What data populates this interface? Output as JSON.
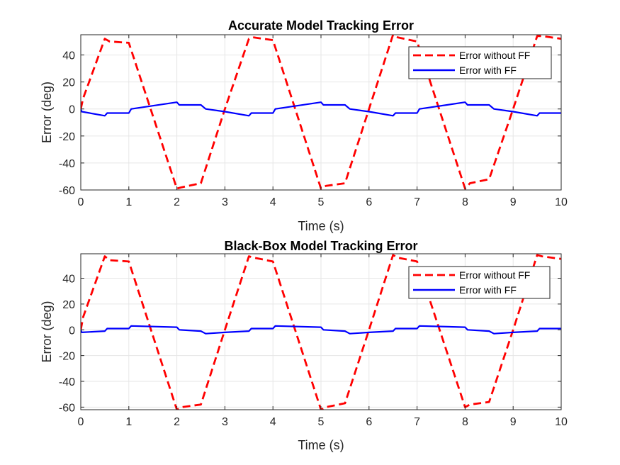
{
  "chart_data": [
    {
      "type": "line",
      "title": "Accurate Model Tracking Error",
      "xlabel": "Time (s)",
      "ylabel": "Error (deg)",
      "xlim": [
        0,
        10
      ],
      "ylim": [
        -60,
        55
      ],
      "xticks": [
        0,
        1,
        2,
        3,
        4,
        5,
        6,
        7,
        8,
        9,
        10
      ],
      "yticks": [
        -60,
        -40,
        -20,
        0,
        20,
        40
      ],
      "grid": true,
      "legend_position": "top-right",
      "series": [
        {
          "name": "Error without FF",
          "color": "#ff0000",
          "style": "dashed",
          "x": [
            0,
            0.05,
            0.5,
            0.6,
            1.0,
            2.0,
            2.1,
            2.5,
            3.0,
            3.5,
            3.6,
            4.0,
            5.0,
            5.1,
            5.5,
            6.0,
            6.5,
            6.6,
            7.0,
            8.0,
            8.1,
            8.5,
            9.0,
            9.5,
            9.6,
            10.0
          ],
          "y": [
            0,
            8,
            52,
            50,
            49,
            -59,
            -58,
            -55,
            0,
            52,
            53,
            51,
            -59,
            -57,
            -55,
            0,
            55,
            53,
            50,
            -59,
            -55,
            -52,
            0,
            54,
            54,
            52
          ]
        },
        {
          "name": "Error with FF",
          "color": "#0000ff",
          "style": "solid",
          "x": [
            0,
            0.02,
            0.5,
            0.55,
            1.0,
            1.05,
            2.0,
            2.05,
            2.5,
            2.6,
            3.0,
            3.5,
            3.55,
            4.0,
            4.05,
            5.0,
            5.05,
            5.5,
            5.6,
            6.0,
            6.5,
            6.55,
            7.0,
            7.05,
            8.0,
            8.05,
            8.5,
            8.6,
            9.0,
            9.5,
            9.55,
            10.0
          ],
          "y": [
            0,
            -2,
            -5,
            -3,
            -3,
            0,
            5,
            3,
            3,
            0,
            -2,
            -5,
            -3,
            -3,
            0,
            5,
            3,
            3,
            0,
            -2,
            -5,
            -3,
            -3,
            0,
            5,
            3,
            3,
            0,
            -2,
            -5,
            -3,
            -3
          ]
        }
      ]
    },
    {
      "type": "line",
      "title": "Black-Box Model Tracking Error",
      "xlabel": "Time (s)",
      "ylabel": "Error (deg)",
      "xlim": [
        0,
        10
      ],
      "ylim": [
        -62,
        59
      ],
      "xticks": [
        0,
        1,
        2,
        3,
        4,
        5,
        6,
        7,
        8,
        9,
        10
      ],
      "yticks": [
        -60,
        -40,
        -20,
        0,
        20,
        40
      ],
      "grid": true,
      "legend_position": "top-right",
      "series": [
        {
          "name": "Error without FF",
          "color": "#ff0000",
          "style": "dashed",
          "x": [
            0,
            0.05,
            0.5,
            0.6,
            1.0,
            2.0,
            2.1,
            2.5,
            3.0,
            3.5,
            3.6,
            4.0,
            5.0,
            5.1,
            5.5,
            6.0,
            6.5,
            6.6,
            7.0,
            8.0,
            8.1,
            8.5,
            9.0,
            9.5,
            9.6,
            10.0
          ],
          "y": [
            0,
            10,
            57,
            54,
            53,
            -62,
            -60,
            -58,
            0,
            57,
            56,
            53,
            -62,
            -60,
            -57,
            0,
            58,
            56,
            53,
            -60,
            -58,
            -56,
            0,
            58,
            57,
            55
          ]
        },
        {
          "name": "Error with FF",
          "color": "#0000ff",
          "style": "solid",
          "x": [
            0,
            0.02,
            0.5,
            0.55,
            1.0,
            1.05,
            2.0,
            2.05,
            2.5,
            2.6,
            3.0,
            3.5,
            3.55,
            4.0,
            4.05,
            5.0,
            5.05,
            5.5,
            5.6,
            6.0,
            6.5,
            6.55,
            7.0,
            7.05,
            8.0,
            8.05,
            8.5,
            8.6,
            9.0,
            9.5,
            9.55,
            10.0
          ],
          "y": [
            0,
            -2,
            -1,
            1,
            1,
            3,
            2,
            0,
            -1,
            -3,
            -2,
            -1,
            1,
            1,
            3,
            2,
            0,
            -1,
            -3,
            -2,
            -1,
            1,
            1,
            3,
            2,
            0,
            -1,
            -3,
            -2,
            -1,
            1,
            1
          ]
        }
      ]
    }
  ]
}
